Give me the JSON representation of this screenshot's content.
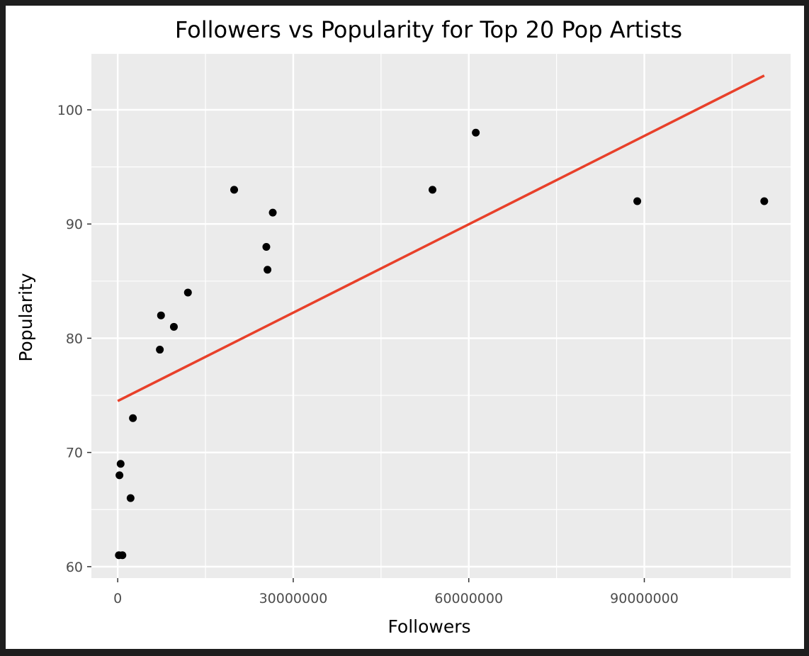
{
  "chart_data": {
    "type": "scatter",
    "title": "Followers vs Popularity for Top 20 Pop Artists",
    "xlabel": "Followers",
    "ylabel": "Popularity",
    "xlim": [
      -4500000,
      115000000
    ],
    "ylim": [
      59,
      104.9
    ],
    "x_ticks": [
      0,
      30000000,
      60000000,
      90000000
    ],
    "x_tick_labels": [
      "0",
      "30000000",
      "60000000",
      "90000000"
    ],
    "x_minor_ticks": [
      15000000,
      45000000,
      75000000,
      105000000
    ],
    "y_ticks": [
      60,
      70,
      80,
      90,
      100
    ],
    "y_tick_labels": [
      "60",
      "70",
      "80",
      "90",
      "100"
    ],
    "y_minor_ticks": [
      65,
      75,
      85,
      95
    ],
    "grid": true,
    "series": [
      {
        "marker_color": "#000000",
        "points": [
          {
            "x": 200000,
            "y": 61
          },
          {
            "x": 800000,
            "y": 61
          },
          {
            "x": 300000,
            "y": 68
          },
          {
            "x": 500000,
            "y": 69
          },
          {
            "x": 2200000,
            "y": 66
          },
          {
            "x": 2600000,
            "y": 73
          },
          {
            "x": 7200000,
            "y": 79
          },
          {
            "x": 7400000,
            "y": 82
          },
          {
            "x": 9600000,
            "y": 81
          },
          {
            "x": 12000000,
            "y": 84
          },
          {
            "x": 19900000,
            "y": 93
          },
          {
            "x": 25400000,
            "y": 88
          },
          {
            "x": 25600000,
            "y": 86
          },
          {
            "x": 26500000,
            "y": 91
          },
          {
            "x": 53800000,
            "y": 93
          },
          {
            "x": 61200000,
            "y": 98
          },
          {
            "x": 88800000,
            "y": 92
          },
          {
            "x": 110500000,
            "y": 92
          }
        ]
      }
    ],
    "fit_line": {
      "color": "#e8402a",
      "x": [
        0,
        110500000
      ],
      "y": [
        74.5,
        103
      ]
    },
    "panel_background": "#ebebeb",
    "grid_color": "#ffffff"
  }
}
